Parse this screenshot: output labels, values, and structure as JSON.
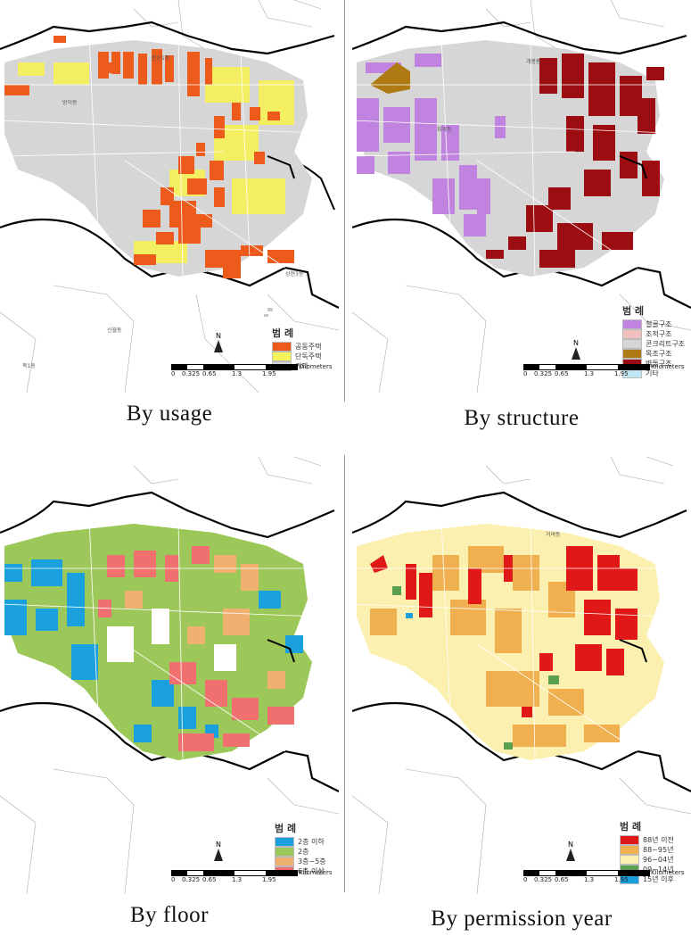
{
  "figure": {
    "captions": [
      "By  usage",
      "By  structure",
      "By  floor",
      "By  permission year"
    ]
  },
  "scale_bar": {
    "ticks": [
      "0",
      "0.325",
      "0.65",
      "1.3",
      "1.95"
    ],
    "unit": "Kilometers",
    "north": "N"
  },
  "panels": [
    {
      "id": "usage",
      "legend_title": "범 례",
      "legend": [
        {
          "label": "공동주택",
          "color": "#ee5a1c"
        },
        {
          "label": "단독주택",
          "color": "#f6f25a"
        },
        {
          "label": "기타",
          "color": "#d4d4d4"
        }
      ]
    },
    {
      "id": "structure",
      "legend_title": "범 례",
      "legend": [
        {
          "label": "철골구조",
          "color": "#c084e0"
        },
        {
          "label": "조적구조",
          "color": "#f3c0c0"
        },
        {
          "label": "콘크리트구조",
          "color": "#d6d6d6"
        },
        {
          "label": "목조구조",
          "color": "#b07a12"
        },
        {
          "label": "벽돌구조",
          "color": "#9c0d12"
        },
        {
          "label": "기타",
          "color": "#bfe6f2"
        }
      ]
    },
    {
      "id": "floor",
      "legend_title": "범 례",
      "legend": [
        {
          "label": "2층 이하",
          "color": "#1aa0dc"
        },
        {
          "label": "2층",
          "color": "#9cc85a"
        },
        {
          "label": "3층~5층",
          "color": "#f0b070"
        },
        {
          "label": "6층 이상",
          "color": "#f07070"
        }
      ]
    },
    {
      "id": "permission",
      "legend_title": "범 례",
      "legend": [
        {
          "label": "88년 이전",
          "color": "#e01818"
        },
        {
          "label": "88~95년",
          "color": "#f0b050"
        },
        {
          "label": "96~04년",
          "color": "#fbf0b0"
        },
        {
          "label": "09~14년",
          "color": "#5aa050"
        },
        {
          "label": "15년 이후",
          "color": "#1aa0dc"
        }
      ]
    }
  ],
  "place_labels": [
    "상현3동",
    "문산1동",
    "방이동",
    "개봉동",
    "화곡동",
    "목1동",
    "신월동",
    "거여동"
  ]
}
